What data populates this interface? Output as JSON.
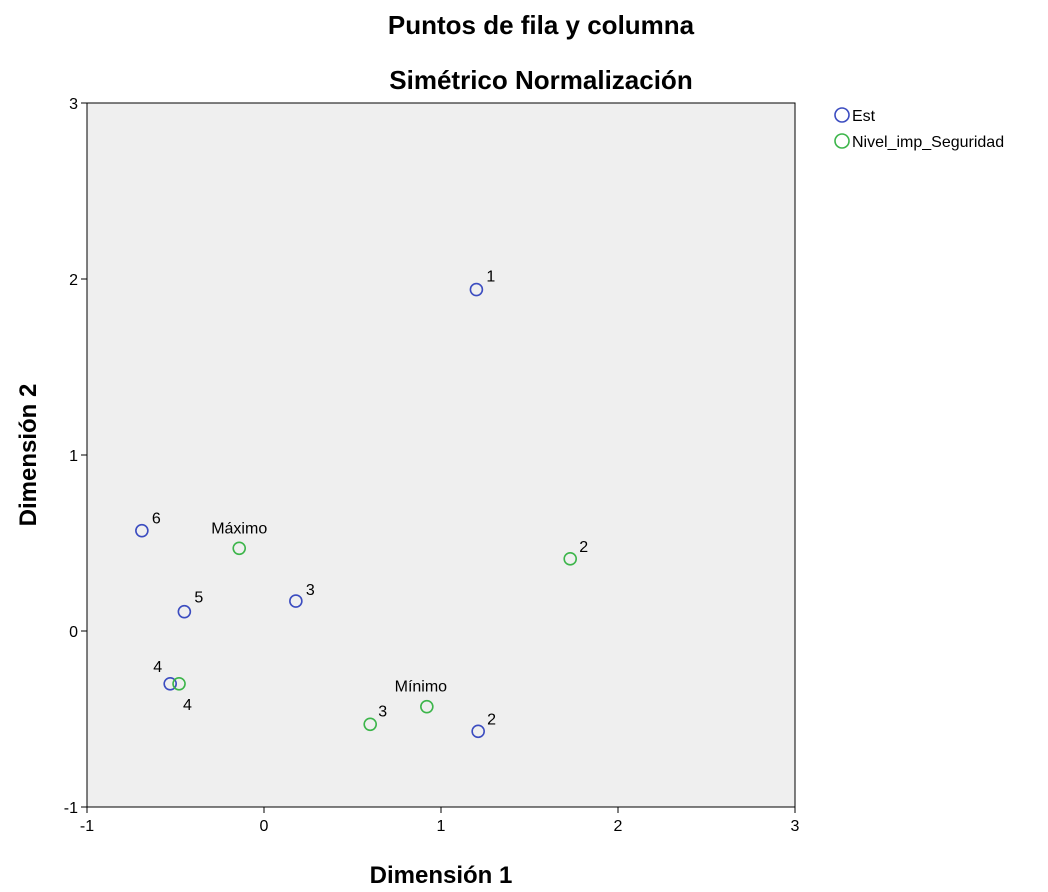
{
  "chart_data": {
    "type": "scatter",
    "title": "Puntos de fila y columna",
    "subtitle": "Simétrico Normalización",
    "xlabel": "Dimensión 1",
    "ylabel": "Dimensión 2",
    "xlim": [
      -1,
      3
    ],
    "ylim": [
      -1,
      3
    ],
    "xticks": [
      "-1",
      "0",
      "1",
      "2",
      "3"
    ],
    "yticks": [
      "-1",
      "0",
      "1",
      "2",
      "3"
    ],
    "grid": false,
    "legend_position": "top-right outside",
    "plot_background": "#efefef",
    "series": [
      {
        "name": "Est",
        "color": "#3b4cc0",
        "marker": "open-circle",
        "points": [
          {
            "x": 1.2,
            "y": 1.94,
            "label": "1"
          },
          {
            "x": 1.21,
            "y": -0.57,
            "label": "2"
          },
          {
            "x": 0.18,
            "y": 0.17,
            "label": "3"
          },
          {
            "x": -0.53,
            "y": -0.3,
            "label": "4"
          },
          {
            "x": -0.45,
            "y": 0.11,
            "label": "5"
          },
          {
            "x": -0.69,
            "y": 0.57,
            "label": "6"
          }
        ]
      },
      {
        "name": "Nivel_imp_Seguridad",
        "color": "#3cb54a",
        "marker": "open-circle",
        "points": [
          {
            "x": -0.14,
            "y": 0.47,
            "label": "Máximo"
          },
          {
            "x": 1.73,
            "y": 0.41,
            "label": "2"
          },
          {
            "x": 0.6,
            "y": -0.53,
            "label": "3"
          },
          {
            "x": -0.48,
            "y": -0.3,
            "label": "4"
          },
          {
            "x": 0.92,
            "y": -0.43,
            "label": "Mínimo"
          }
        ]
      }
    ]
  }
}
